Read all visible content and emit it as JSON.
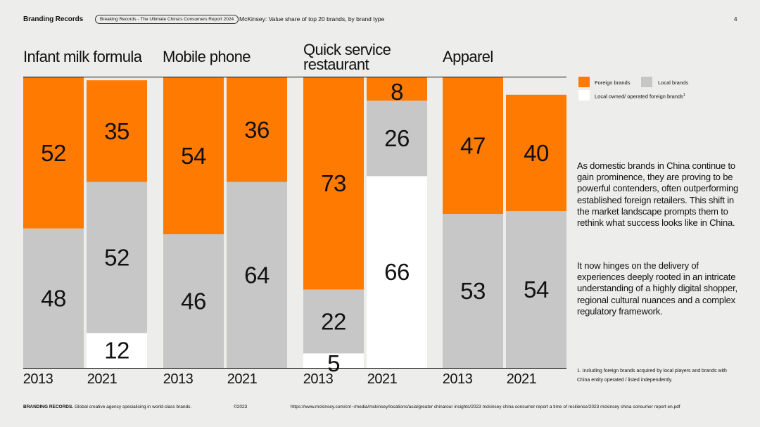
{
  "header": {
    "brand": "Branding Records",
    "report_pill": "Breaking Records - The Ultimate China's Consumers Report 2024",
    "source_title": "McKinsey: Value share of top 20 brands, by brand type",
    "page_number": "4"
  },
  "colors": {
    "foreign": "#ff7a00",
    "local": "#c7c7c7",
    "local_owned": "#ffffff",
    "background": "#ededeb"
  },
  "legend": {
    "foreign": "Foreign brands",
    "local": "Local brands",
    "local_owned": "Local owned/ operated foreign brands"
  },
  "chart_data": {
    "type": "bar",
    "stacked": true,
    "categories": [
      "Infant milk formula",
      "Mobile phone",
      "Quick service\nrestaurant",
      "Apparel"
    ],
    "years": [
      "2013",
      "2021"
    ],
    "series": [
      {
        "name": "Local owned/ operated foreign brands",
        "key": "local_owned",
        "values": [
          [
            0,
            12
          ],
          [
            0,
            0
          ],
          [
            5,
            66
          ],
          [
            0,
            0
          ]
        ]
      },
      {
        "name": "Local brands",
        "key": "local",
        "values": [
          [
            48,
            52
          ],
          [
            46,
            64
          ],
          [
            22,
            26
          ],
          [
            53,
            54
          ]
        ]
      },
      {
        "name": "Foreign brands",
        "key": "foreign",
        "values": [
          [
            52,
            35
          ],
          [
            54,
            36
          ],
          [
            73,
            8
          ],
          [
            47,
            40
          ]
        ]
      }
    ],
    "unit": "%",
    "ylim": [
      0,
      100
    ]
  },
  "body_text": {
    "p1": "As domestic brands in China continue to gain prominence, they are proving to be powerful contenders, often outperforming established foreign retailers. This shift in the market landscape prompts them to rethink what success looks like in China.",
    "p2": "It now hinges on the delivery of experiences deeply rooted in an intricate understanding of a highly digital shopper, regional cultural nuances and a complex regulatory framework.",
    "footnote": "1. Including foreign brands acquired by local players and brands with China entity operated / listed independently."
  },
  "footer": {
    "brand": "BRANDING RECORDS.",
    "tagline": "Global creative agency specialising in world-class brands.",
    "copyright": "©2023",
    "url": "https://www.mckinsey.com/cn/~/media/mckinsey/locations/asia/greater china/our insights/2023 mckinsey china consumer report a time of resilience/2023 mckinsey china consumer report en.pdf"
  }
}
